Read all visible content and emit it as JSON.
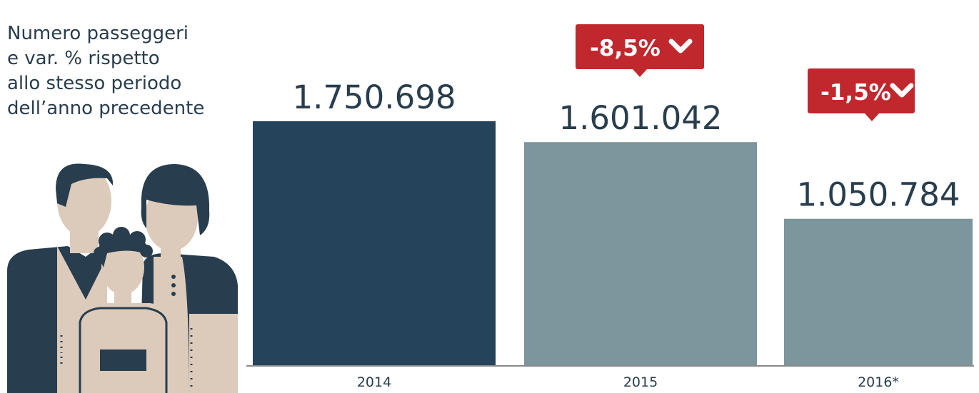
{
  "description": {
    "lines": [
      "Numero passeggeri",
      "e var. % rispetto",
      "allo stesso periodo",
      "dell’anno precedente"
    ]
  },
  "illustration": {
    "subject": "family-illustration"
  },
  "colors": {
    "bar_2014": "#25435a",
    "bar_other": "#7d959c",
    "badge": "#c0282d",
    "text": "#283d4d",
    "axis": "#8a8a8a",
    "skin": "#dccabb",
    "hair": "#283d4d"
  },
  "chart_data": {
    "type": "bar",
    "categories": [
      "2014",
      "2015",
      "2016*"
    ],
    "values": [
      1750698,
      1601042,
      1050784
    ],
    "value_labels": [
      "1.750.698",
      "1.601.042",
      "1.050.784"
    ],
    "changes": [
      null,
      "-8,5%",
      "-1,5%"
    ],
    "change_direction": [
      null,
      "down",
      "down"
    ],
    "title": "",
    "xlabel": "",
    "ylabel": ""
  }
}
